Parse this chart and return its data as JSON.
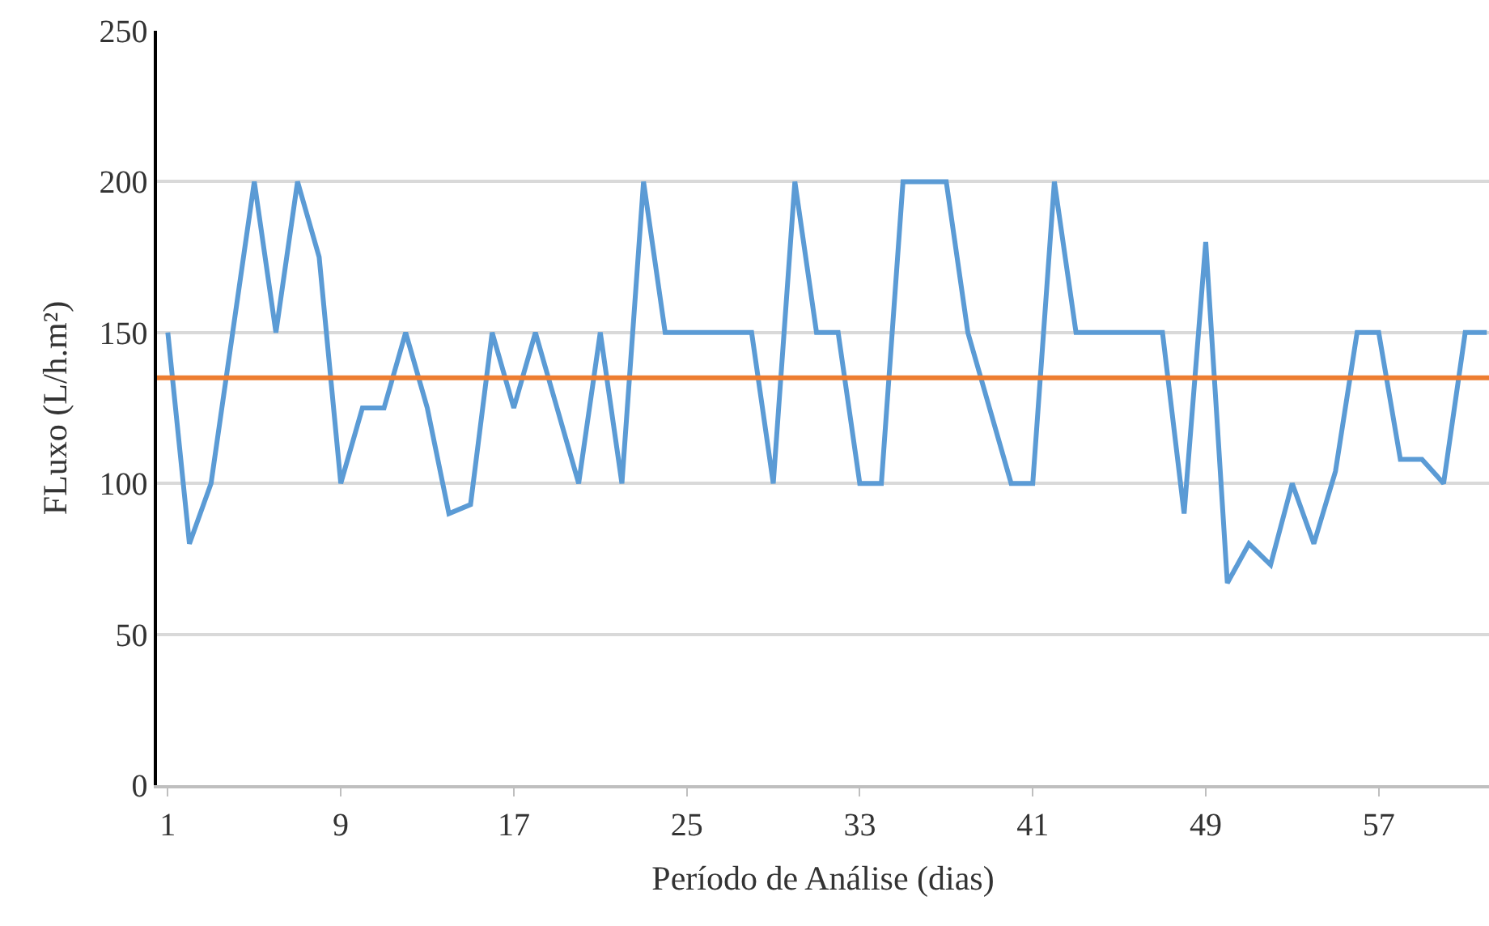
{
  "chart_data": {
    "type": "line",
    "xlabel": "Período de Análise (dias)",
    "ylabel": "FLuxo (L/h.m²)",
    "x": [
      1,
      2,
      3,
      4,
      5,
      6,
      7,
      8,
      9,
      10,
      11,
      12,
      13,
      14,
      15,
      16,
      17,
      18,
      19,
      20,
      21,
      22,
      23,
      24,
      25,
      26,
      27,
      28,
      29,
      30,
      31,
      32,
      33,
      34,
      35,
      36,
      37,
      38,
      39,
      40,
      41,
      42,
      43,
      44,
      45,
      46,
      47,
      48,
      49,
      50,
      51,
      52,
      53,
      54,
      55,
      56,
      57,
      58,
      59,
      60,
      61,
      62
    ],
    "series": [
      {
        "color": "#5b9bd5",
        "values": [
          150,
          80,
          100,
          150,
          200,
          150,
          200,
          175,
          100,
          125,
          125,
          150,
          125,
          90,
          93,
          150,
          125,
          150,
          125,
          100,
          150,
          100,
          200,
          150,
          150,
          150,
          150,
          150,
          100,
          200,
          150,
          150,
          100,
          100,
          200,
          200,
          200,
          150,
          125,
          100,
          100,
          200,
          150,
          150,
          150,
          150,
          150,
          90,
          180,
          67,
          80,
          73,
          100,
          80,
          104,
          150,
          150,
          108,
          108,
          100,
          150,
          150
        ]
      }
    ],
    "ref_lines": [
      {
        "axis": "y",
        "value": 135,
        "color": "#ed7d31"
      }
    ],
    "xlim": [
      0.5,
      62.1
    ],
    "xticks": [
      1,
      9,
      17,
      25,
      33,
      41,
      49,
      57
    ],
    "ylim": [
      0,
      250
    ],
    "yticks": [
      0,
      50,
      100,
      150,
      200,
      250
    ],
    "grid": "y",
    "marker": "none",
    "line_style": "solid"
  }
}
